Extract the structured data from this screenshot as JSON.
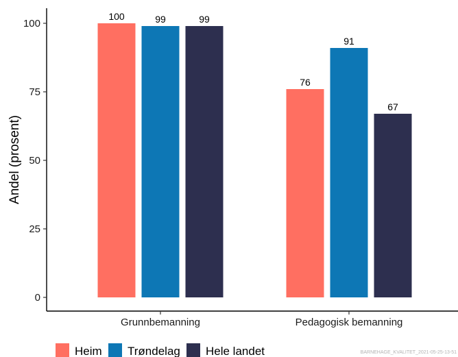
{
  "chart_data": {
    "type": "bar",
    "categories": [
      "Grunnbemanning",
      "Pedagogisk bemanning"
    ],
    "series": [
      {
        "name": "Heim",
        "color": "#FF6F61",
        "values": [
          100,
          76
        ]
      },
      {
        "name": "Trøndelag",
        "color": "#0D77B5",
        "values": [
          99,
          91
        ]
      },
      {
        "name": "Hele landet",
        "color": "#2D2F4F",
        "values": [
          99,
          67
        ]
      }
    ],
    "ylabel": "Andel (prosent)",
    "xlabel": "",
    "ylim": [
      0,
      105
    ],
    "yticks": [
      0,
      25,
      50,
      75,
      100
    ],
    "grid": false,
    "legend_position": "bottom-left"
  },
  "footnote": "BARNEHAGE_KVALITET_2021-05-25-13-51"
}
